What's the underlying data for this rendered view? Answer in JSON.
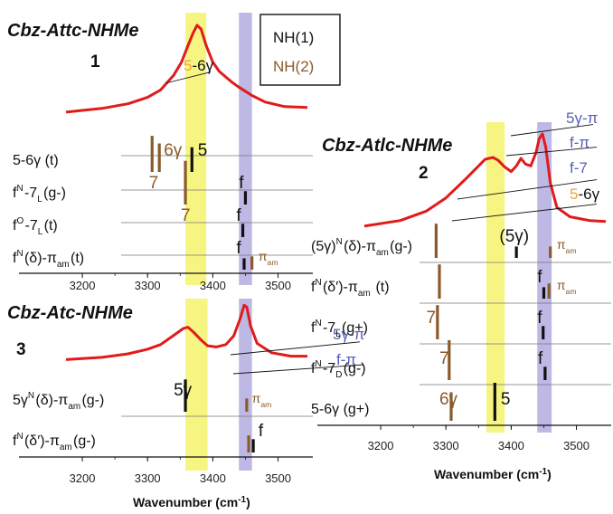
{
  "legend": {
    "items": [
      {
        "label": "NH(1)",
        "color": "#111111"
      },
      {
        "label": "NH(2)",
        "color": "#8a5a2b"
      }
    ]
  },
  "colors": {
    "ir": "#e01b1b",
    "nh1": "#111111",
    "nh2": "#8a5a2b",
    "yellow": "#f7f47a",
    "lavender": "#b9b5e3",
    "orange": "#f2a230",
    "blue": "#5960b8"
  },
  "chart_data": [
    {
      "type": "line",
      "id": "panel1",
      "title": "Cbz-Attc-NHMe",
      "number": "1",
      "xlim": [
        3175,
        3545
      ],
      "xticks": [
        "3200",
        "3300",
        "3400",
        "3500"
      ],
      "xlabel": "",
      "highlight_bands": [
        [
          3358,
          3390
        ],
        [
          3440,
          3460
        ]
      ],
      "ir_spectrum": {
        "x": [
          3175,
          3230,
          3270,
          3300,
          3320,
          3340,
          3352,
          3362,
          3370,
          3376,
          3382,
          3390,
          3400,
          3410,
          3420,
          3430,
          3440,
          3460,
          3480,
          3510,
          3545
        ],
        "y": [
          0.06,
          0.1,
          0.15,
          0.22,
          0.3,
          0.46,
          0.6,
          0.78,
          0.92,
          1.0,
          0.96,
          0.78,
          0.6,
          0.5,
          0.44,
          0.38,
          0.33,
          0.24,
          0.17,
          0.12,
          0.11
        ]
      },
      "annotations": [
        {
          "parts": [
            {
              "text": "5",
              "color": "#f2a230"
            },
            {
              "text": "-6γ",
              "color": "#111111"
            }
          ],
          "points_to": 3370
        }
      ],
      "conformers": [
        {
          "label": "5-6γ (t)",
          "bars": [
            {
              "x": 3307,
              "h": 0.95,
              "type": "NH(2)"
            },
            {
              "x": 3318,
              "h": 0.75,
              "type": "NH(2)"
            },
            {
              "x": 3368,
              "h": 0.65,
              "type": "NH(1)"
            }
          ],
          "bar_labels": [
            {
              "text": "6γ",
              "color": "#8a5a2b",
              "x": 3325
            },
            {
              "text": "5",
              "color": "#111111",
              "x": 3377
            }
          ]
        },
        {
          "label": "fN-7L(g-)",
          "bars": [
            {
              "x": 3358,
              "h": 1.15,
              "type": "NH(2)"
            },
            {
              "x": 3450,
              "h": 0.35,
              "type": "NH(1)"
            }
          ],
          "bar_labels": [
            {
              "text": "7",
              "color": "#8a5a2b",
              "x": 3302
            },
            {
              "text": "f",
              "color": "#111111",
              "x": 3440
            }
          ]
        },
        {
          "label": "fO-7L(t)",
          "bars": [
            {
              "x": 3446,
              "h": 0.35,
              "type": "NH(1)"
            }
          ],
          "bar_labels": [
            {
              "text": "7",
              "color": "#8a5a2b",
              "x": 3351
            },
            {
              "text": "f",
              "color": "#111111",
              "x": 3436
            }
          ]
        },
        {
          "label": "fN(δ)-πam(t)",
          "bars": [
            {
              "x": 3448,
              "h": 0.3,
              "type": "NH(1)"
            },
            {
              "x": 3460,
              "h": 0.35,
              "type": "NH(2)"
            }
          ],
          "bar_labels": [
            {
              "text": "f",
              "color": "#111111",
              "x": 3436
            },
            {
              "text": "πam",
              "color": "#8a5a2b",
              "x": 3470
            }
          ]
        }
      ]
    },
    {
      "type": "line",
      "id": "panel3",
      "title": "Cbz-Atc-NHMe",
      "number": "3",
      "xlim": [
        3175,
        3545
      ],
      "xticks": [
        "3200",
        "3300",
        "3400",
        "3500"
      ],
      "xlabel": "Wavenumber (cm-1)",
      "highlight_bands": [
        [
          3358,
          3392
        ],
        [
          3440,
          3460
        ]
      ],
      "ir_spectrum": {
        "x": [
          3175,
          3230,
          3270,
          3300,
          3320,
          3340,
          3355,
          3362,
          3370,
          3382,
          3392,
          3405,
          3420,
          3432,
          3442,
          3448,
          3452,
          3458,
          3468,
          3490,
          3520,
          3545
        ],
        "y": [
          0.04,
          0.08,
          0.14,
          0.22,
          0.3,
          0.46,
          0.58,
          0.6,
          0.52,
          0.38,
          0.28,
          0.26,
          0.3,
          0.45,
          0.75,
          0.98,
          0.95,
          0.62,
          0.32,
          0.16,
          0.1,
          0.1
        ]
      },
      "annotations": [
        {
          "parts": [
            {
              "text": "5γ-π",
              "color": "#5960b8"
            }
          ],
          "points_to": 3452
        },
        {
          "parts": [
            {
              "text": "f-π",
              "color": "#5960b8"
            }
          ],
          "points_to": 3455
        }
      ],
      "conformers": [
        {
          "label": "5γN(δ)-πam(g-)",
          "bars": [
            {
              "x": 3358,
              "h": 0.85,
              "type": "NH(1)"
            },
            {
              "x": 3452,
              "h": 0.35,
              "type": "NH(2)"
            }
          ],
          "bar_labels": [
            {
              "text": "5γ",
              "color": "#111111",
              "x": 3340
            },
            {
              "text": "πam",
              "color": "#8a5a2b",
              "x": 3460
            }
          ]
        },
        {
          "label": "fN(δ′)-πam(g-)",
          "bars": [
            {
              "x": 3455,
              "h": 0.45,
              "type": "NH(2)"
            },
            {
              "x": 3462,
              "h": 0.35,
              "type": "NH(1)"
            }
          ],
          "bar_labels": [
            {
              "text": "f",
              "color": "#111111",
              "x": 3470
            }
          ]
        }
      ]
    },
    {
      "type": "line",
      "id": "panel2",
      "title": "Cbz-Atlc-NHMe",
      "number": "2",
      "xlim": [
        3175,
        3545
      ],
      "xticks": [
        "3200",
        "3300",
        "3400",
        "3500"
      ],
      "xlabel": "Wavenumber (cm-1)",
      "highlight_bands": [
        [
          3362,
          3390
        ],
        [
          3440,
          3462
        ]
      ],
      "ir_spectrum": {
        "x": [
          3175,
          3230,
          3270,
          3300,
          3330,
          3350,
          3360,
          3372,
          3380,
          3390,
          3400,
          3408,
          3415,
          3422,
          3430,
          3438,
          3443,
          3448,
          3453,
          3460,
          3470,
          3490,
          3520,
          3545
        ],
        "y": [
          0.02,
          0.08,
          0.18,
          0.32,
          0.52,
          0.66,
          0.73,
          0.75,
          0.72,
          0.65,
          0.6,
          0.66,
          0.74,
          0.68,
          0.66,
          0.8,
          0.95,
          1.0,
          0.86,
          0.48,
          0.22,
          0.12,
          0.08,
          0.07
        ]
      },
      "annotations": [
        {
          "parts": [
            {
              "text": "5γ-π",
              "color": "#5960b8"
            }
          ],
          "points_to": 3448
        },
        {
          "parts": [
            {
              "text": "f-π",
              "color": "#5960b8"
            }
          ],
          "points_to": 3443
        },
        {
          "parts": [
            {
              "text": "f-7",
              "color": "#5960b8"
            }
          ],
          "points_to": 3380
        },
        {
          "parts": [
            {
              "text": "5",
              "color": "#f2a230"
            },
            {
              "text": "-6γ",
              "color": "#111111"
            }
          ],
          "points_to": 3372
        }
      ],
      "conformers": [
        {
          "label": "(5γ)N(δ)-πam(g-)",
          "bars": [
            {
              "x": 3408,
              "h": 0.3,
              "type": "NH(1)"
            },
            {
              "x": 3460,
              "h": 0.3,
              "type": "NH(2)"
            },
            {
              "x": 3285,
              "h": 0.9,
              "type": "NH(2)"
            }
          ],
          "bar_labels": [
            {
              "text": "(5γ)",
              "color": "#111111",
              "x": 3382
            },
            {
              "text": "πam",
              "color": "#8a5a2b",
              "x": 3470
            }
          ]
        },
        {
          "label": "fN(δ′)-πam (t)",
          "bars": [
            {
              "x": 3290,
              "h": 0.9,
              "type": "NH(2)"
            },
            {
              "x": 3450,
              "h": 0.3,
              "type": "NH(1)"
            },
            {
              "x": 3458,
              "h": 0.4,
              "type": "NH(2)"
            }
          ],
          "bar_labels": [
            {
              "text": "f",
              "color": "#111111",
              "x": 3440
            },
            {
              "text": "πam",
              "color": "#8a5a2b",
              "x": 3470
            }
          ]
        },
        {
          "label": "fN-7L(g+)",
          "bars": [
            {
              "x": 3287,
              "h": 0.9,
              "type": "NH(2)"
            },
            {
              "x": 3449,
              "h": 0.35,
              "type": "NH(1)"
            }
          ],
          "bar_labels": [
            {
              "text": "7",
              "color": "#8a5a2b",
              "x": 3270
            },
            {
              "text": "f",
              "color": "#111111",
              "x": 3440
            }
          ]
        },
        {
          "label": "fN-7D(g-)",
          "bars": [
            {
              "x": 3305,
              "h": 1.05,
              "type": "NH(2)"
            },
            {
              "x": 3452,
              "h": 0.35,
              "type": "NH(1)"
            }
          ],
          "bar_labels": [
            {
              "text": "7",
              "color": "#8a5a2b",
              "x": 3290
            },
            {
              "text": "f",
              "color": "#111111",
              "x": 3441
            }
          ]
        },
        {
          "label": "5-6γ (g+)",
          "bars": [
            {
              "x": 3308,
              "h": 0.75,
              "type": "NH(2)"
            },
            {
              "x": 3375,
              "h": 1.0,
              "type": "NH(1)"
            }
          ],
          "bar_labels": [
            {
              "text": "6γ",
              "color": "#8a5a2b",
              "x": 3290
            },
            {
              "text": "5",
              "color": "#111111",
              "x": 3384
            }
          ]
        }
      ]
    }
  ]
}
